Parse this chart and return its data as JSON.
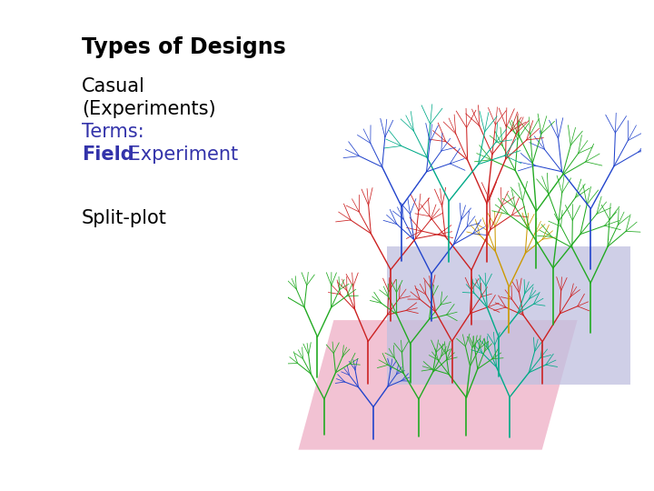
{
  "title": "Types of Designs",
  "title_color": "#000000",
  "title_fontsize": 17,
  "title_bold": true,
  "line1": "Casual",
  "line1_color": "#000000",
  "line1_fontsize": 15,
  "line2": "(Experiments)",
  "line2_color": "#000000",
  "line2_fontsize": 15,
  "line3": "Terms:",
  "line3_color": "#3333aa",
  "line3_fontsize": 15,
  "line4_bold": "Field",
  "line4_regular": " Experiment",
  "line4_color": "#3333aa",
  "line4_fontsize": 15,
  "line5": "Split-plot",
  "line5_color": "#000000",
  "line5_fontsize": 15,
  "bg_color": "#ffffff",
  "plant_colors": [
    "#00aa88",
    "#cc9900",
    "#2244cc",
    "#cc2222",
    "#22aa22"
  ],
  "plate_pink": "#f0b8cc",
  "plate_lavender": "#c0c0e0"
}
